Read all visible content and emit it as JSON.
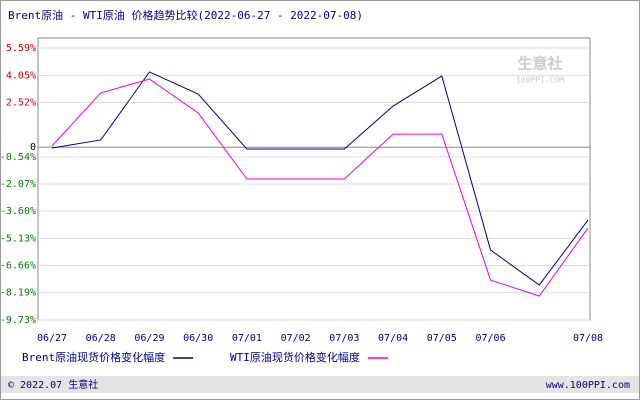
{
  "chart_data": {
    "type": "line",
    "title": "Brent原油 - WTI原油 价格趋势比较(2022-06-27 - 2022-07-08)",
    "categories": [
      "06/27",
      "06/28",
      "06/29",
      "06/30",
      "07/01",
      "07/02",
      "07/03",
      "07/04",
      "07/05",
      "07/06",
      null,
      "07/08"
    ],
    "series": [
      {
        "name": "Brent原油现货价格变化幅度",
        "color": "#000080",
        "values": [
          -0.04,
          0.41,
          4.24,
          3.0,
          -0.1,
          -0.1,
          -0.1,
          2.32,
          4.01,
          -5.79,
          -7.76,
          -4.1
        ]
      },
      {
        "name": "WTI原油现货价格变化幅度",
        "color": "#ee00ee",
        "values": [
          0.07,
          3.06,
          3.84,
          1.93,
          -1.79,
          -1.79,
          -1.79,
          0.74,
          0.74,
          -7.48,
          -8.38,
          -4.55
        ]
      }
    ],
    "ylim": [
      -9.73,
      5.59
    ],
    "yticks": [
      {
        "value": 5.59,
        "label": "5.59%"
      },
      {
        "value": 4.05,
        "label": "4.05%"
      },
      {
        "value": 2.52,
        "label": "2.52%"
      },
      0,
      {
        "value": -0.54,
        "label": "-0.54%"
      },
      {
        "value": -2.07,
        "label": "-2.07%"
      },
      {
        "value": -3.6,
        "label": "-3.60%"
      },
      {
        "value": -5.13,
        "label": "-5.13%"
      },
      {
        "value": -6.66,
        "label": "-6.66%"
      },
      {
        "value": -8.19,
        "label": "-8.19%"
      },
      {
        "value": -9.73,
        "label": "-9.73%"
      }
    ],
    "grid": true,
    "watermark": [
      "生意社",
      "100PPI.COM"
    ],
    "footer_left": "© 2022.07 生意社",
    "footer_right": "www.100PPI.com"
  }
}
